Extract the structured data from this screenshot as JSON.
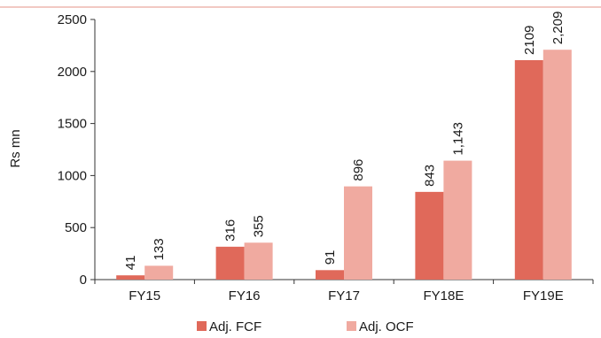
{
  "chart_data": {
    "type": "bar",
    "title": "",
    "xlabel": "",
    "ylabel": "Rs mn",
    "ylim": [
      0,
      2500
    ],
    "yticks": [
      0,
      500,
      1000,
      1500,
      2000,
      2500
    ],
    "grid": false,
    "legend_position": "bottom",
    "categories": [
      "FY15",
      "FY16",
      "FY17",
      "FY18E",
      "FY19E"
    ],
    "series": [
      {
        "name": "Adj. FCF",
        "color": "#e0695a",
        "values": [
          41,
          316,
          91,
          843,
          2109
        ],
        "labels": [
          "41",
          "316",
          "91",
          "843",
          "2109"
        ]
      },
      {
        "name": "Adj. OCF",
        "color": "#f0aaa0",
        "values": [
          133,
          355,
          896,
          1143,
          2209
        ],
        "labels": [
          "133",
          "355",
          "896",
          "1,143",
          "2,209"
        ]
      }
    ]
  },
  "colors": {
    "top_rule": "#f2c9c3",
    "axis": "#333333"
  }
}
